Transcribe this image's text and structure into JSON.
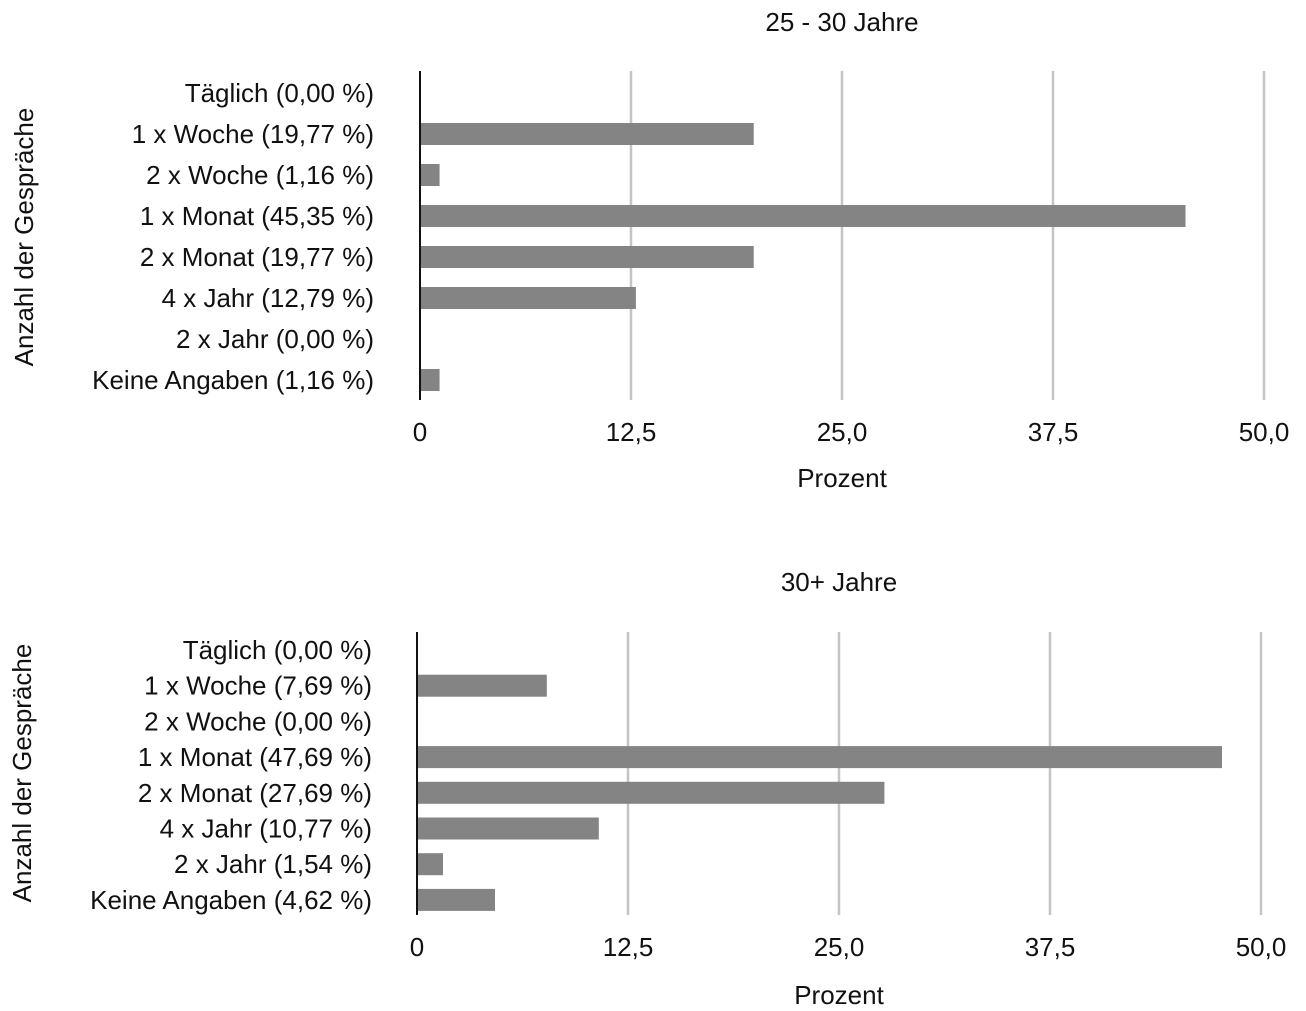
{
  "chart_data": [
    {
      "type": "bar",
      "orientation": "horizontal",
      "title": "25 - 30 Jahre",
      "xlabel": "Prozent",
      "ylabel": "Anzahl der Gespräche",
      "categories": [
        "Täglich (0,00 %)",
        "1 x Woche (19,77 %)",
        "2 x Woche (1,16 %)",
        "1 x Monat (45,35 %)",
        "2 x Monat (19,77 %)",
        "4 x Jahr (12,79 %)",
        "2 x Jahr (0,00 %)",
        "Keine Angaben (1,16 %)"
      ],
      "values": [
        0.0,
        19.77,
        1.16,
        45.35,
        19.77,
        12.79,
        0.0,
        1.16
      ],
      "xlim": [
        0,
        50
      ],
      "xticks": [
        0,
        12.5,
        25,
        37.5,
        50
      ],
      "xtick_labels": [
        "0",
        "12,5",
        "25,0",
        "37,5",
        "50,0"
      ],
      "grid": "vertical",
      "bar_color": "#848484"
    },
    {
      "type": "bar",
      "orientation": "horizontal",
      "title": "30+ Jahre",
      "xlabel": "Prozent",
      "ylabel": "Anzahl der Gespräche",
      "categories": [
        "Täglich (0,00 %)",
        "1 x Woche (7,69 %)",
        "2 x Woche (0,00 %)",
        "1 x Monat (47,69 %)",
        "2 x Monat (27,69 %)",
        "4 x Jahr (10,77 %)",
        "2 x Jahr (1,54 %)",
        "Keine Angaben (4,62 %)"
      ],
      "values": [
        0.0,
        7.69,
        0.0,
        47.69,
        27.69,
        10.77,
        1.54,
        4.62
      ],
      "xlim": [
        0,
        50
      ],
      "xticks": [
        0,
        12.5,
        25,
        37.5,
        50
      ],
      "xtick_labels": [
        "0",
        "12,5",
        "25,0",
        "37,5",
        "50,0"
      ],
      "grid": "vertical",
      "bar_color": "#848484"
    }
  ]
}
